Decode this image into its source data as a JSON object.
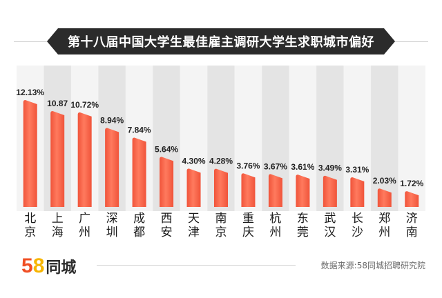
{
  "title": "第十八届中国大学生最佳雇主调研大学生求职城市偏好",
  "logo": {
    "digit_5": "5",
    "digit_8": "8",
    "name": "同城"
  },
  "source": "数据来源:58同城招聘研究院",
  "colors": {
    "bar": "#f0543a",
    "bar_highlight": "#ff7a5e",
    "band_light": "#f4f4f4",
    "band_dark": "#e4e4e4",
    "title_bg": "#2b2b2b"
  },
  "chart_data": {
    "type": "bar",
    "categories": [
      "北京",
      "上海",
      "广州",
      "深圳",
      "成都",
      "西安",
      "天津",
      "南京",
      "重庆",
      "杭州",
      "东莞",
      "武汉",
      "长沙",
      "郑州",
      "济南"
    ],
    "values": [
      12.13,
      10.87,
      10.72,
      8.94,
      7.84,
      5.64,
      4.3,
      4.28,
      3.76,
      3.67,
      3.61,
      3.49,
      3.31,
      2.03,
      1.72
    ],
    "labels": [
      "12.13%",
      "10.87",
      "10.72%",
      "8.94%",
      "7.84%",
      "5.64%",
      "4.30%",
      "4.28%",
      "3.76%",
      "3.67%",
      "3.61%",
      "3.49%",
      "3.31%",
      "2.03%",
      "1.72%"
    ],
    "ylim": [
      0,
      12.13
    ],
    "grid": false,
    "legend": "none"
  }
}
